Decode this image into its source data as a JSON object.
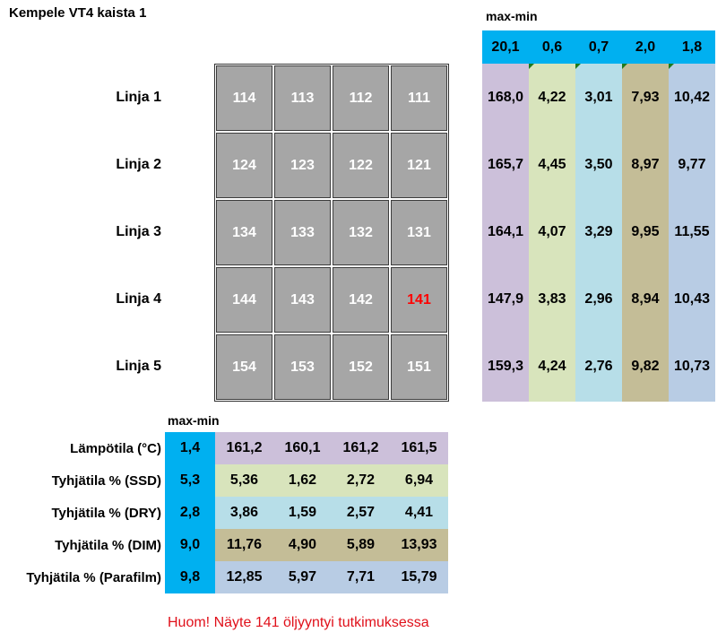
{
  "title": "Kempele VT4 kaista 1",
  "top_maxmin": {
    "label": "max-min",
    "values": [
      "20,1",
      "0,6",
      "0,7",
      "2,0",
      "1,8"
    ]
  },
  "lines": [
    {
      "label": "Linja 1",
      "samples": [
        "114",
        "113",
        "112",
        "111"
      ]
    },
    {
      "label": "Linja 2",
      "samples": [
        "124",
        "123",
        "122",
        "121"
      ]
    },
    {
      "label": "Linja 3",
      "samples": [
        "134",
        "133",
        "132",
        "131"
      ]
    },
    {
      "label": "Linja 4",
      "samples": [
        "144",
        "143",
        "142",
        "141"
      ]
    },
    {
      "label": "Linja 5",
      "samples": [
        "154",
        "153",
        "152",
        "151"
      ]
    }
  ],
  "highlighted_sample": "141",
  "right_columns": [
    {
      "color": "#ccc0da",
      "values": [
        "168,0",
        "165,7",
        "164,1",
        "147,9",
        "159,3"
      ]
    },
    {
      "color": "#d8e4bc",
      "values": [
        "4,22",
        "4,45",
        "4,07",
        "3,83",
        "4,24"
      ]
    },
    {
      "color": "#b7dee8",
      "values": [
        "3,01",
        "3,50",
        "3,29",
        "2,96",
        "2,76"
      ]
    },
    {
      "color": "#c4bd97",
      "values": [
        "7,93",
        "8,97",
        "9,95",
        "8,94",
        "9,82"
      ]
    },
    {
      "color": "#b8cce4",
      "values": [
        "10,42",
        "9,77",
        "11,55",
        "10,43",
        "10,73"
      ]
    }
  ],
  "bottom_maxmin_label": "max-min",
  "bottom_rows": [
    {
      "label": "Lämpötila (°C)",
      "maxmin": "1,4",
      "color": "#ccc0da",
      "values": [
        "161,2",
        "160,1",
        "161,2",
        "161,5"
      ]
    },
    {
      "label": "Tyhjätila % (SSD)",
      "maxmin": "5,3",
      "color": "#d8e4bc",
      "values": [
        "5,36",
        "1,62",
        "2,72",
        "6,94"
      ]
    },
    {
      "label": "Tyhjätila % (DRY)",
      "maxmin": "2,8",
      "color": "#b7dee8",
      "values": [
        "3,86",
        "1,59",
        "2,57",
        "4,41"
      ]
    },
    {
      "label": "Tyhjätila % (DIM)",
      "maxmin": "9,0",
      "color": "#c4bd97",
      "values": [
        "11,76",
        "4,90",
        "5,89",
        "13,93"
      ]
    },
    {
      "label": "Tyhjätila % (Parafilm)",
      "maxmin": "9,8",
      "color": "#b8cce4",
      "values": [
        "12,85",
        "5,97",
        "7,71",
        "15,79"
      ]
    }
  ],
  "note": "Huom! Näyte 141 öljyyntyi tutkimuksessa",
  "colors": {
    "accent": "#00b0f0",
    "tile": "#a6a6a6",
    "warning": "#ff0000"
  }
}
